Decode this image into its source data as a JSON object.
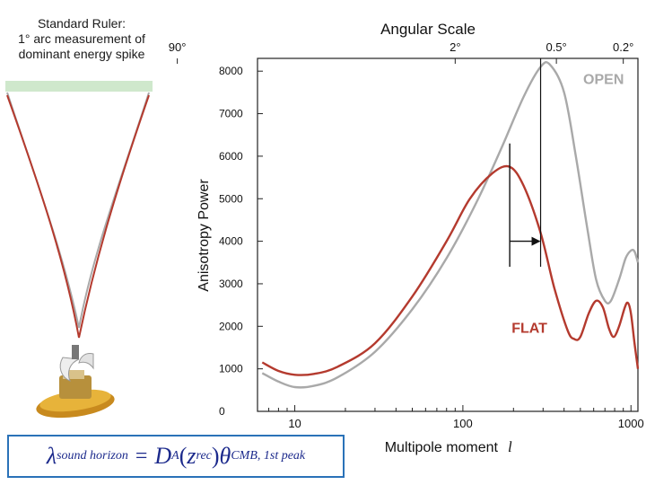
{
  "ruler": {
    "caption_lines": [
      "Standard Ruler:",
      "1° arc measurement of",
      "dominant energy spike"
    ],
    "satellite_icon": "satellite-icon",
    "colors": {
      "bar": "#cfe8cc",
      "gray_line": "#a9a9a9",
      "red_line": "#b43a2e"
    }
  },
  "formula": {
    "lambda": "λ",
    "lambda_sub": "sound horizon",
    "equals": "=",
    "D": "D",
    "D_sub": "A",
    "open_paren": "(",
    "z": "z",
    "z_sub": "rec",
    "close_paren": ")",
    "theta": "θ",
    "theta_sub": "CMB, 1st peak"
  },
  "chart_data": {
    "type": "line",
    "title": "Angular Scale",
    "xlabel": "Multipole moment",
    "xlabel_symbol": "l",
    "ylabel": "Anisotropy Power",
    "x_scale": "log",
    "xlim": [
      6,
      1100
    ],
    "ylim": [
      0,
      8300
    ],
    "x_ticks": [
      10,
      100,
      1000
    ],
    "x_tick_labels": [
      "10",
      "100",
      "1000"
    ],
    "y_ticks": [
      0,
      1000,
      2000,
      3000,
      4000,
      5000,
      6000,
      7000,
      8000
    ],
    "y_tick_labels": [
      "0",
      "1000",
      "2000",
      "3000",
      "4000",
      "5000",
      "6000",
      "7000",
      "8000"
    ],
    "top_axis": {
      "tick_l": [
        2,
        90,
        360,
        900
      ],
      "tick_labels": [
        "90°",
        "2°",
        "0.5°",
        "0.2°"
      ]
    },
    "grid": false,
    "series": [
      {
        "name": "OPEN",
        "color": "#a9a9a9",
        "points": [
          [
            6.4,
            900
          ],
          [
            8,
            700
          ],
          [
            10,
            570
          ],
          [
            13,
            600
          ],
          [
            18,
            800
          ],
          [
            30,
            1400
          ],
          [
            50,
            2400
          ],
          [
            80,
            3600
          ],
          [
            120,
            4900
          ],
          [
            170,
            6200
          ],
          [
            230,
            7400
          ],
          [
            290,
            8100
          ],
          [
            330,
            8150
          ],
          [
            400,
            7500
          ],
          [
            470,
            6000
          ],
          [
            550,
            4300
          ],
          [
            620,
            3100
          ],
          [
            700,
            2600
          ],
          [
            760,
            2600
          ],
          [
            850,
            3100
          ],
          [
            930,
            3600
          ],
          [
            1000,
            3780
          ],
          [
            1050,
            3760
          ],
          [
            1100,
            3500
          ]
        ]
      },
      {
        "name": "FLAT",
        "color": "#b43a2e",
        "points": [
          [
            6.4,
            1150
          ],
          [
            8,
            950
          ],
          [
            10,
            860
          ],
          [
            13,
            880
          ],
          [
            18,
            1050
          ],
          [
            30,
            1600
          ],
          [
            50,
            2700
          ],
          [
            80,
            4000
          ],
          [
            110,
            5000
          ],
          [
            150,
            5600
          ],
          [
            190,
            5750
          ],
          [
            230,
            5300
          ],
          [
            290,
            4200
          ],
          [
            350,
            2900
          ],
          [
            420,
            1900
          ],
          [
            460,
            1700
          ],
          [
            500,
            1750
          ],
          [
            560,
            2300
          ],
          [
            620,
            2600
          ],
          [
            680,
            2450
          ],
          [
            740,
            1950
          ],
          [
            790,
            1750
          ],
          [
            850,
            2000
          ],
          [
            920,
            2450
          ],
          [
            960,
            2550
          ],
          [
            1000,
            2300
          ],
          [
            1050,
            1600
          ],
          [
            1100,
            1000
          ]
        ]
      }
    ],
    "annotations": [
      {
        "text": "OPEN",
        "color": "#a9a9a9",
        "x": 520,
        "y": 7700
      },
      {
        "text": "FLAT",
        "color": "#b43a2e",
        "x": 195,
        "y": 1850
      }
    ],
    "markers": {
      "flat_peak_line": {
        "x": 190,
        "y_min": 3400,
        "y_max": 6300
      },
      "open_peak_line": {
        "x": 290,
        "y_min": 3400,
        "y_max": 8300
      },
      "arrow": {
        "from_x": 190,
        "to_x": 290,
        "y": 4000
      }
    }
  }
}
